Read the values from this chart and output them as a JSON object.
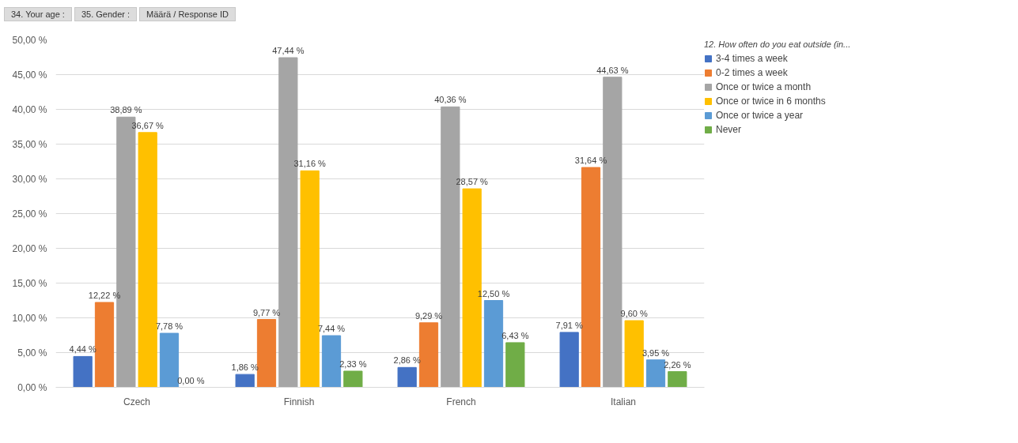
{
  "chart_data": {
    "type": "bar",
    "annotations": [
      "34. Your age :",
      "35. Gender :",
      "Määrä  / Response ID"
    ],
    "legend_title": "12. How often do you eat outside (in...",
    "categories": [
      "Czech",
      "Finnish",
      "French",
      "Italian"
    ],
    "series": [
      {
        "name": "3-4 times a week",
        "color": "#4472c4",
        "values": [
          4.44,
          1.86,
          2.86,
          7.91
        ],
        "value_labels": [
          "4,44 %",
          "1,86 %",
          "2,86 %",
          "7,91 %"
        ]
      },
      {
        "name": "0-2 times a week",
        "color": "#ed7d31",
        "values": [
          12.22,
          9.77,
          9.29,
          31.64
        ],
        "value_labels": [
          "12,22 %",
          "9,77 %",
          "9,29 %",
          "31,64 %"
        ]
      },
      {
        "name": "Once or twice a month",
        "color": "#a5a5a5",
        "values": [
          38.89,
          47.44,
          40.36,
          44.63
        ],
        "value_labels": [
          "38,89 %",
          "47,44 %",
          "40,36 %",
          "44,63 %"
        ]
      },
      {
        "name": "Once or twice in 6 months",
        "color": "#ffc000",
        "values": [
          36.67,
          31.16,
          28.57,
          9.6
        ],
        "value_labels": [
          "36,67 %",
          "31,16 %",
          "28,57 %",
          "9,60 %"
        ]
      },
      {
        "name": "Once or twice a year",
        "color": "#5b9bd5",
        "values": [
          7.78,
          7.44,
          12.5,
          3.95
        ],
        "value_labels": [
          "7,78 %",
          "7,44 %",
          "12,50 %",
          "3,95 %"
        ]
      },
      {
        "name": "Never",
        "color": "#70ad47",
        "values": [
          0.0,
          2.33,
          6.43,
          2.26
        ],
        "value_labels": [
          "0,00 %",
          "2,33 %",
          "6,43 %",
          "2,26 %"
        ]
      }
    ],
    "ylim": [
      0,
      50
    ],
    "yticks": [
      {
        "value": 0,
        "label": "0,00 %"
      },
      {
        "value": 5,
        "label": "5,00 %"
      },
      {
        "value": 10,
        "label": "10,00 %"
      },
      {
        "value": 15,
        "label": "15,00 %"
      },
      {
        "value": 20,
        "label": "20,00 %"
      },
      {
        "value": 25,
        "label": "25,00 %"
      },
      {
        "value": 30,
        "label": "30,00 %"
      },
      {
        "value": 35,
        "label": "35,00 %"
      },
      {
        "value": 40,
        "label": "40,00 %"
      },
      {
        "value": 45,
        "label": "45,00 %"
      },
      {
        "value": 50,
        "label": "50,00 %"
      }
    ],
    "grid": "y",
    "legend": "right"
  }
}
